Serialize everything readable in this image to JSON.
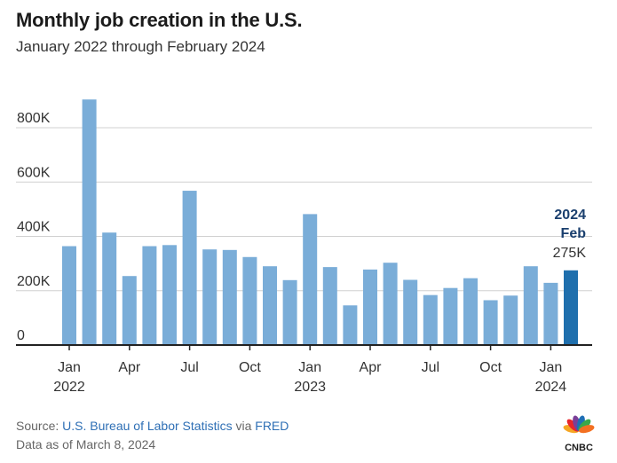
{
  "header": {
    "title": "Monthly job creation in the U.S.",
    "subtitle": "January 2022 through February 2024"
  },
  "chart_data": {
    "type": "bar",
    "categories": [
      "Jan 2022",
      "Feb 2022",
      "Mar 2022",
      "Apr 2022",
      "May 2022",
      "Jun 2022",
      "Jul 2022",
      "Aug 2022",
      "Sep 2022",
      "Oct 2022",
      "Nov 2022",
      "Dec 2022",
      "Jan 2023",
      "Feb 2023",
      "Mar 2023",
      "Apr 2023",
      "May 2023",
      "Jun 2023",
      "Jul 2023",
      "Aug 2023",
      "Sep 2023",
      "Oct 2023",
      "Nov 2023",
      "Dec 2023",
      "Jan 2024",
      "Feb 2024"
    ],
    "values": [
      364,
      904,
      414,
      254,
      364,
      368,
      568,
      352,
      350,
      324,
      290,
      239,
      482,
      287,
      146,
      278,
      303,
      240,
      184,
      210,
      246,
      165,
      182,
      290,
      229,
      275
    ],
    "unit": "thousands of jobs",
    "ylim": [
      0,
      1000
    ],
    "yticks": [
      0,
      200,
      400,
      600,
      800
    ],
    "ytick_labels": [
      "0",
      "200K",
      "400K",
      "600K",
      "800K"
    ],
    "xtick_labels": [
      {
        "index": 0,
        "month": "Jan",
        "year": "2022"
      },
      {
        "index": 3,
        "month": "Apr",
        "year": ""
      },
      {
        "index": 6,
        "month": "Jul",
        "year": ""
      },
      {
        "index": 9,
        "month": "Oct",
        "year": ""
      },
      {
        "index": 12,
        "month": "Jan",
        "year": "2023"
      },
      {
        "index": 15,
        "month": "Apr",
        "year": ""
      },
      {
        "index": 18,
        "month": "Jul",
        "year": ""
      },
      {
        "index": 21,
        "month": "Oct",
        "year": ""
      },
      {
        "index": 24,
        "month": "Jan",
        "year": "2024"
      }
    ],
    "grid": true,
    "colors": {
      "bar": "#7aadd8",
      "highlight": "#1f6fad",
      "annotation": "#1a3f6e",
      "grid": "#d0d0d0",
      "axis": "#222222"
    },
    "annotation": {
      "year": "2024",
      "month": "Feb",
      "value": "275K"
    }
  },
  "source": {
    "prefix": "Source: ",
    "org": "U.S. Bureau of Labor Statistics",
    "via": " via ",
    "site": "FRED",
    "date_note": "Data as of March 8, 2024"
  },
  "logo": {
    "text": "CNBC"
  }
}
